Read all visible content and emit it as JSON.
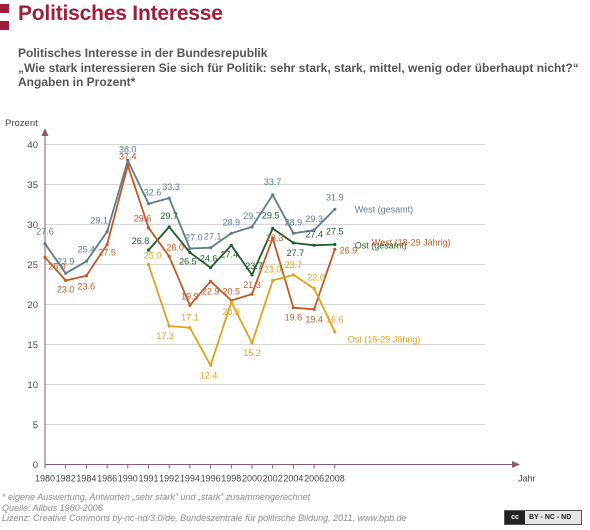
{
  "header": {
    "title": "Politisches Interesse",
    "subtitle_lines": [
      "Politisches Interesse in der Bundesrepublik",
      "„Wie stark interessieren Sie sich für Politik: sehr stark, stark, mittel, wenig oder überhaupt nicht?“",
      "Angaben in Prozent*"
    ]
  },
  "footer": {
    "notes": [
      "* eigene Auswertung, Antworten „sehr stark“ und „stark“ zusammengerechnet",
      "Quelle: Allbus 1980-2006",
      "Lizenz: Creative Commons by-nc-nd/3.0/de, Bundeszentrale für politische Bildung, 2011, www.bpb.de"
    ],
    "license_badge": {
      "icon_text": "cc",
      "text": "BY - NC - ND"
    }
  },
  "colors": {
    "accent": "#9e1f3b",
    "west_gesamt": "#5f7c8f",
    "ost_gesamt": "#1e5c2a",
    "west_jung": "#c25a28",
    "ost_jung": "#e0a21a",
    "axis": "#8a5a6a",
    "grid": "#d6d6d6"
  },
  "chart_data": {
    "type": "line",
    "ylabel": "Prozent",
    "xlabel": "Jahr",
    "ylim": [
      0,
      40
    ],
    "yticks": [
      0,
      5,
      10,
      15,
      20,
      25,
      30,
      35,
      40
    ],
    "x": [
      "1980",
      "1982",
      "1984",
      "1986",
      "1990",
      "1991",
      "1992",
      "1994",
      "1996",
      "1998",
      "2000",
      "2002",
      "2004",
      "2006",
      "2008"
    ],
    "grid": "horizontal",
    "series": [
      {
        "name": "West (gesamt)",
        "color_key": "west_gesamt",
        "values": [
          27.6,
          23.9,
          25.4,
          29.1,
          38.0,
          32.6,
          33.3,
          27.0,
          27.1,
          28.9,
          29.7,
          33.7,
          28.9,
          29.3,
          31.9
        ],
        "labels": [
          "27.6",
          "23.9",
          "25.4",
          "29.1",
          "38.0",
          "32.6",
          "33.3",
          "27.0",
          "27.1",
          "28.9",
          "29.7",
          "33.7",
          "28.9",
          "29.3",
          "31.9"
        ]
      },
      {
        "name": "Ost (gesamt)",
        "color_key": "ost_gesamt",
        "values": [
          null,
          null,
          null,
          null,
          null,
          26.8,
          29.7,
          26.5,
          24.6,
          27.4,
          23.7,
          29.5,
          27.7,
          27.4,
          27.5
        ],
        "labels": [
          null,
          null,
          null,
          null,
          null,
          "26.8",
          "29.7",
          "26.5",
          "24.6",
          "27.4",
          "23.7",
          "29.5",
          "27.7",
          "27.4",
          "27.5"
        ]
      },
      {
        "name": "West (18-29 Jährig)",
        "color_key": "west_jung",
        "values": [
          25.9,
          23.0,
          23.6,
          27.5,
          37.4,
          29.6,
          26.0,
          19.9,
          22.9,
          20.5,
          21.3,
          28.3,
          19.6,
          19.4,
          26.9
        ],
        "labels": [
          "25.9",
          "23.0",
          "23.6",
          "27.5",
          "37.4",
          "29.6",
          "26.0",
          "19.9",
          "22.9",
          "20.5",
          "21.3",
          "28.3",
          "19.6",
          "19.4",
          "26.9"
        ]
      },
      {
        "name": "Ost (18-29 Jährig)",
        "color_key": "ost_jung",
        "values": [
          null,
          null,
          null,
          null,
          null,
          25.0,
          17.3,
          17.1,
          12.4,
          20.3,
          15.2,
          23.0,
          23.7,
          22.0,
          16.6
        ],
        "labels": [
          null,
          null,
          null,
          null,
          null,
          "25.0",
          "17.3",
          "17.1",
          "12.4",
          "20.3",
          "15.2",
          "23.0",
          "23.7",
          "22.0",
          "16.6"
        ]
      }
    ],
    "legend": "right, next to line ends"
  }
}
